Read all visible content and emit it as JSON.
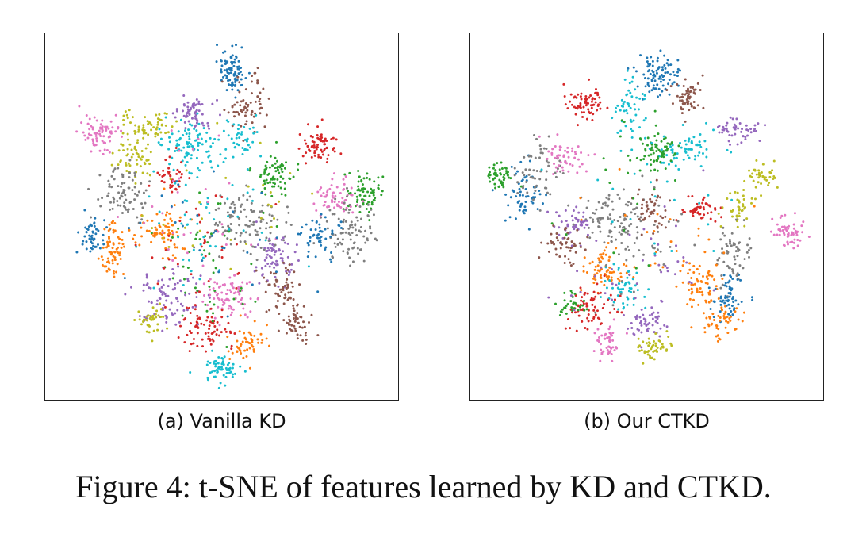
{
  "figure": {
    "caption": "Figure 4: t-SNE of features learned by KD and CTKD.",
    "subcaptions": [
      "(a) Vanilla KD",
      "(b) Our CTKD"
    ]
  },
  "palette": [
    "#1f77b4",
    "#ff7f0e",
    "#2ca02c",
    "#d62728",
    "#9467bd",
    "#8c564b",
    "#e377c2",
    "#7f7f7f",
    "#bcbd22",
    "#17becf"
  ],
  "chart_data": [
    {
      "type": "scatter",
      "title": "",
      "xlabel": "",
      "ylabel": "",
      "xlim": [
        0,
        1
      ],
      "ylim": [
        0,
        1
      ],
      "ticks": false,
      "grid": false,
      "legend": "none",
      "note_clusters": "approximate cluster centers (x right, y down), spread, point count, class color index",
      "clusters": [
        {
          "cls": 0,
          "x": 0.53,
          "y": 0.09,
          "sx": 0.022,
          "sy": 0.03,
          "n": 90
        },
        {
          "cls": 5,
          "x": 0.58,
          "y": 0.19,
          "sx": 0.03,
          "sy": 0.035,
          "n": 70
        },
        {
          "cls": 6,
          "x": 0.14,
          "y": 0.26,
          "sx": 0.03,
          "sy": 0.025,
          "n": 80
        },
        {
          "cls": 8,
          "x": 0.28,
          "y": 0.24,
          "sx": 0.04,
          "sy": 0.02,
          "n": 60
        },
        {
          "cls": 4,
          "x": 0.42,
          "y": 0.21,
          "sx": 0.035,
          "sy": 0.02,
          "n": 60
        },
        {
          "cls": 9,
          "x": 0.41,
          "y": 0.3,
          "sx": 0.04,
          "sy": 0.035,
          "n": 90
        },
        {
          "cls": 9,
          "x": 0.56,
          "y": 0.28,
          "sx": 0.025,
          "sy": 0.03,
          "n": 40
        },
        {
          "cls": 3,
          "x": 0.78,
          "y": 0.3,
          "sx": 0.03,
          "sy": 0.025,
          "n": 70
        },
        {
          "cls": 2,
          "x": 0.66,
          "y": 0.38,
          "sx": 0.03,
          "sy": 0.03,
          "n": 70
        },
        {
          "cls": 8,
          "x": 0.24,
          "y": 0.34,
          "sx": 0.03,
          "sy": 0.03,
          "n": 50
        },
        {
          "cls": 3,
          "x": 0.36,
          "y": 0.39,
          "sx": 0.025,
          "sy": 0.025,
          "n": 40
        },
        {
          "cls": 7,
          "x": 0.22,
          "y": 0.44,
          "sx": 0.035,
          "sy": 0.04,
          "n": 80
        },
        {
          "cls": 2,
          "x": 0.92,
          "y": 0.43,
          "sx": 0.025,
          "sy": 0.03,
          "n": 70
        },
        {
          "cls": 6,
          "x": 0.84,
          "y": 0.45,
          "sx": 0.03,
          "sy": 0.03,
          "n": 60
        },
        {
          "cls": 7,
          "x": 0.88,
          "y": 0.54,
          "sx": 0.04,
          "sy": 0.04,
          "n": 90
        },
        {
          "cls": 0,
          "x": 0.79,
          "y": 0.55,
          "sx": 0.03,
          "sy": 0.03,
          "n": 50
        },
        {
          "cls": 0,
          "x": 0.12,
          "y": 0.55,
          "sx": 0.02,
          "sy": 0.03,
          "n": 50
        },
        {
          "cls": 1,
          "x": 0.18,
          "y": 0.6,
          "sx": 0.02,
          "sy": 0.04,
          "n": 70
        },
        {
          "cls": 1,
          "x": 0.32,
          "y": 0.55,
          "sx": 0.04,
          "sy": 0.04,
          "n": 70
        },
        {
          "cls": 7,
          "x": 0.58,
          "y": 0.52,
          "sx": 0.06,
          "sy": 0.04,
          "n": 110
        },
        {
          "cls": 4,
          "x": 0.66,
          "y": 0.62,
          "sx": 0.04,
          "sy": 0.04,
          "n": 70
        },
        {
          "cls": 5,
          "x": 0.68,
          "y": 0.7,
          "sx": 0.025,
          "sy": 0.04,
          "n": 60
        },
        {
          "cls": 5,
          "x": 0.72,
          "y": 0.8,
          "sx": 0.02,
          "sy": 0.025,
          "n": 50
        },
        {
          "cls": 4,
          "x": 0.34,
          "y": 0.73,
          "sx": 0.05,
          "sy": 0.04,
          "n": 90
        },
        {
          "cls": 6,
          "x": 0.52,
          "y": 0.72,
          "sx": 0.04,
          "sy": 0.03,
          "n": 80
        },
        {
          "cls": 8,
          "x": 0.29,
          "y": 0.8,
          "sx": 0.02,
          "sy": 0.02,
          "n": 40
        },
        {
          "cls": 3,
          "x": 0.45,
          "y": 0.82,
          "sx": 0.04,
          "sy": 0.03,
          "n": 70
        },
        {
          "cls": 1,
          "x": 0.57,
          "y": 0.86,
          "sx": 0.025,
          "sy": 0.025,
          "n": 50
        },
        {
          "cls": 9,
          "x": 0.5,
          "y": 0.93,
          "sx": 0.025,
          "sy": 0.02,
          "n": 60
        },
        {
          "cls": 2,
          "x": 0.46,
          "y": 0.64,
          "sx": 0.07,
          "sy": 0.1,
          "n": 50
        },
        {
          "cls": 9,
          "x": 0.45,
          "y": 0.5,
          "sx": 0.1,
          "sy": 0.1,
          "n": 60
        },
        {
          "cls": 3,
          "x": 0.42,
          "y": 0.62,
          "sx": 0.08,
          "sy": 0.08,
          "n": 40
        },
        {
          "cls": 6,
          "x": 0.4,
          "y": 0.45,
          "sx": 0.1,
          "sy": 0.1,
          "n": 30
        },
        {
          "cls": 8,
          "x": 0.5,
          "y": 0.45,
          "sx": 0.12,
          "sy": 0.12,
          "n": 30
        },
        {
          "cls": 0,
          "x": 0.5,
          "y": 0.55,
          "sx": 0.12,
          "sy": 0.1,
          "n": 30
        }
      ]
    },
    {
      "type": "scatter",
      "title": "",
      "xlabel": "",
      "ylabel": "",
      "xlim": [
        0,
        1
      ],
      "ylim": [
        0,
        1
      ],
      "ticks": false,
      "grid": false,
      "legend": "none",
      "note_clusters": "approximate cluster centers (x right, y down), spread, point count, class color index",
      "clusters": [
        {
          "cls": 0,
          "x": 0.53,
          "y": 0.1,
          "sx": 0.03,
          "sy": 0.03,
          "n": 90
        },
        {
          "cls": 5,
          "x": 0.62,
          "y": 0.16,
          "sx": 0.025,
          "sy": 0.025,
          "n": 60
        },
        {
          "cls": 3,
          "x": 0.32,
          "y": 0.18,
          "sx": 0.03,
          "sy": 0.025,
          "n": 70
        },
        {
          "cls": 9,
          "x": 0.45,
          "y": 0.2,
          "sx": 0.025,
          "sy": 0.05,
          "n": 50
        },
        {
          "cls": 9,
          "x": 0.63,
          "y": 0.31,
          "sx": 0.05,
          "sy": 0.02,
          "n": 60
        },
        {
          "cls": 2,
          "x": 0.53,
          "y": 0.31,
          "sx": 0.03,
          "sy": 0.03,
          "n": 70
        },
        {
          "cls": 4,
          "x": 0.77,
          "y": 0.26,
          "sx": 0.03,
          "sy": 0.02,
          "n": 50
        },
        {
          "cls": 8,
          "x": 0.84,
          "y": 0.38,
          "sx": 0.025,
          "sy": 0.02,
          "n": 40
        },
        {
          "cls": 2,
          "x": 0.07,
          "y": 0.39,
          "sx": 0.02,
          "sy": 0.02,
          "n": 50
        },
        {
          "cls": 0,
          "x": 0.14,
          "y": 0.44,
          "sx": 0.03,
          "sy": 0.04,
          "n": 60
        },
        {
          "cls": 7,
          "x": 0.18,
          "y": 0.37,
          "sx": 0.03,
          "sy": 0.04,
          "n": 60
        },
        {
          "cls": 6,
          "x": 0.26,
          "y": 0.33,
          "sx": 0.03,
          "sy": 0.025,
          "n": 50
        },
        {
          "cls": 4,
          "x": 0.28,
          "y": 0.52,
          "sx": 0.03,
          "sy": 0.03,
          "n": 50
        },
        {
          "cls": 5,
          "x": 0.26,
          "y": 0.58,
          "sx": 0.03,
          "sy": 0.025,
          "n": 50
        },
        {
          "cls": 7,
          "x": 0.4,
          "y": 0.51,
          "sx": 0.04,
          "sy": 0.04,
          "n": 80
        },
        {
          "cls": 5,
          "x": 0.51,
          "y": 0.48,
          "sx": 0.025,
          "sy": 0.03,
          "n": 50
        },
        {
          "cls": 3,
          "x": 0.66,
          "y": 0.48,
          "sx": 0.025,
          "sy": 0.02,
          "n": 50
        },
        {
          "cls": 8,
          "x": 0.77,
          "y": 0.48,
          "sx": 0.02,
          "sy": 0.03,
          "n": 40
        },
        {
          "cls": 6,
          "x": 0.91,
          "y": 0.55,
          "sx": 0.025,
          "sy": 0.025,
          "n": 60
        },
        {
          "cls": 7,
          "x": 0.76,
          "y": 0.61,
          "sx": 0.025,
          "sy": 0.05,
          "n": 60
        },
        {
          "cls": 1,
          "x": 0.66,
          "y": 0.69,
          "sx": 0.03,
          "sy": 0.04,
          "n": 60
        },
        {
          "cls": 0,
          "x": 0.74,
          "y": 0.73,
          "sx": 0.025,
          "sy": 0.03,
          "n": 60
        },
        {
          "cls": 1,
          "x": 0.72,
          "y": 0.8,
          "sx": 0.025,
          "sy": 0.025,
          "n": 50
        },
        {
          "cls": 1,
          "x": 0.37,
          "y": 0.65,
          "sx": 0.03,
          "sy": 0.025,
          "n": 60
        },
        {
          "cls": 9,
          "x": 0.43,
          "y": 0.7,
          "sx": 0.03,
          "sy": 0.03,
          "n": 50
        },
        {
          "cls": 3,
          "x": 0.34,
          "y": 0.76,
          "sx": 0.04,
          "sy": 0.03,
          "n": 70
        },
        {
          "cls": 2,
          "x": 0.28,
          "y": 0.75,
          "sx": 0.02,
          "sy": 0.02,
          "n": 30
        },
        {
          "cls": 4,
          "x": 0.5,
          "y": 0.8,
          "sx": 0.03,
          "sy": 0.03,
          "n": 50
        },
        {
          "cls": 6,
          "x": 0.38,
          "y": 0.86,
          "sx": 0.02,
          "sy": 0.025,
          "n": 50
        },
        {
          "cls": 8,
          "x": 0.52,
          "y": 0.87,
          "sx": 0.025,
          "sy": 0.02,
          "n": 50
        },
        {
          "cls": 7,
          "x": 0.47,
          "y": 0.55,
          "sx": 0.08,
          "sy": 0.08,
          "n": 50
        },
        {
          "cls": 4,
          "x": 0.5,
          "y": 0.62,
          "sx": 0.1,
          "sy": 0.08,
          "n": 40
        },
        {
          "cls": 9,
          "x": 0.55,
          "y": 0.45,
          "sx": 0.12,
          "sy": 0.1,
          "n": 30
        },
        {
          "cls": 1,
          "x": 0.5,
          "y": 0.58,
          "sx": 0.1,
          "sy": 0.1,
          "n": 30
        },
        {
          "cls": 2,
          "x": 0.45,
          "y": 0.4,
          "sx": 0.12,
          "sy": 0.1,
          "n": 20
        }
      ]
    }
  ]
}
